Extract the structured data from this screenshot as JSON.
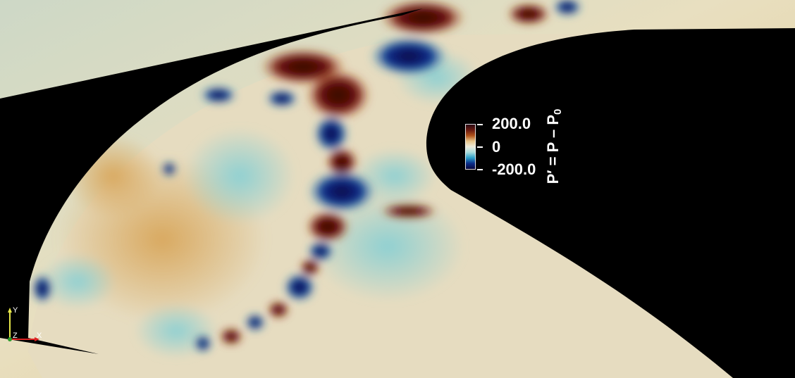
{
  "colorbar": {
    "max_label": "200.0",
    "mid_label": "0",
    "min_label": "-200.0",
    "title_main": "P′ = P – P",
    "title_sub": "0",
    "colors": [
      "#2a0a12",
      "#6a1a10",
      "#b0521a",
      "#e6c58a",
      "#ecebdc",
      "#a9dcdc",
      "#2b9fc8",
      "#0c2e8a",
      "#08083e"
    ]
  },
  "axes_triad": {
    "y": "Y",
    "z": "Z",
    "x": "X"
  },
  "field_colors": {
    "hot": "#3a0505",
    "warm": "#e0b878",
    "neutral": "#e8e6d5",
    "cool": "#9fd8d8",
    "cold": "#0a0a4a"
  }
}
